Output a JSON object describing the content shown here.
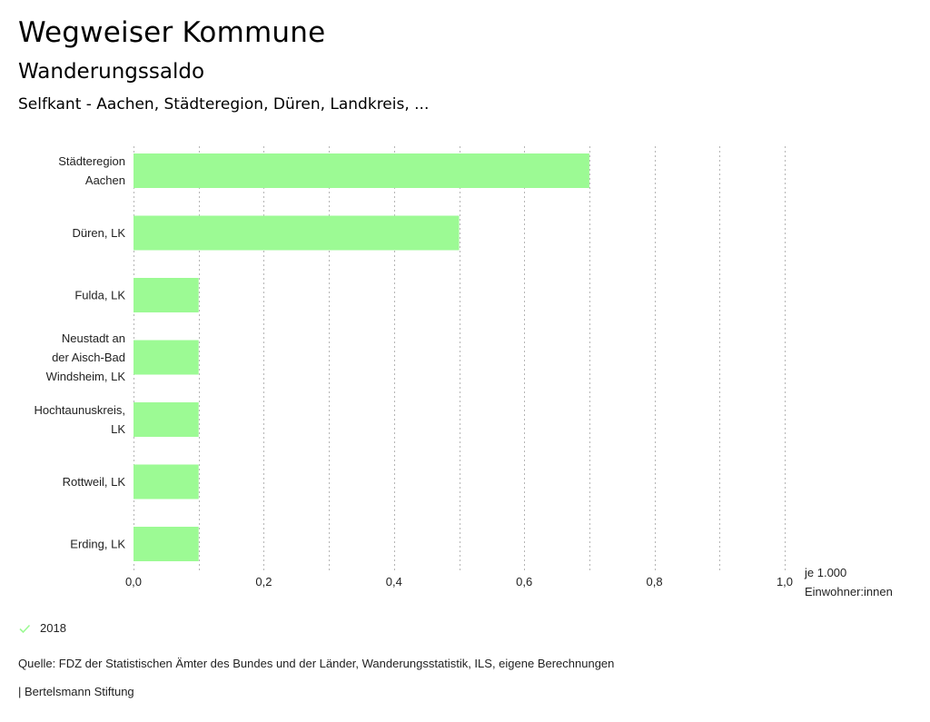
{
  "header": {
    "title": "Wegweiser Kommune",
    "subtitle": "Wanderungssaldo",
    "region": "Selfkant - Aachen, Städteregion, Düren, Landkreis, ..."
  },
  "chart_data": {
    "type": "bar",
    "orientation": "horizontal",
    "categories": [
      [
        "Städteregion",
        "Aachen"
      ],
      [
        "Düren, LK"
      ],
      [
        "Fulda, LK"
      ],
      [
        "Neustadt an",
        "der Aisch-Bad",
        "Windsheim, LK"
      ],
      [
        "Hochtaunuskreis,",
        "LK"
      ],
      [
        "Rottweil, LK"
      ],
      [
        "Erding, LK"
      ]
    ],
    "series": [
      {
        "name": "2018",
        "values": [
          0.7,
          0.5,
          0.1,
          0.1,
          0.1,
          0.1,
          0.1
        ],
        "color": "#9cfa94"
      }
    ],
    "xlim": [
      0,
      1.0
    ],
    "xticks": [
      0.0,
      0.2,
      0.4,
      0.6,
      0.8,
      1.0
    ],
    "xtick_labels": [
      "0,0",
      "0,2",
      "0,4",
      "0,6",
      "0,8",
      "1,0"
    ],
    "minor_grid_step": 0.1,
    "xlabel": [
      "je 1.000",
      "Einwohner:innen"
    ],
    "grid": true,
    "grid_color": "#b5b5b5",
    "legend_position": "bottom-left"
  },
  "legend": {
    "label": "2018",
    "icon": "check-icon",
    "color": "#9cfa94"
  },
  "footer": {
    "source": "Quelle: FDZ der Statistischen Ämter des Bundes und der Länder, Wanderungsstatistik, ILS, eigene Berechnungen",
    "credit": "| Bertelsmann Stiftung"
  }
}
